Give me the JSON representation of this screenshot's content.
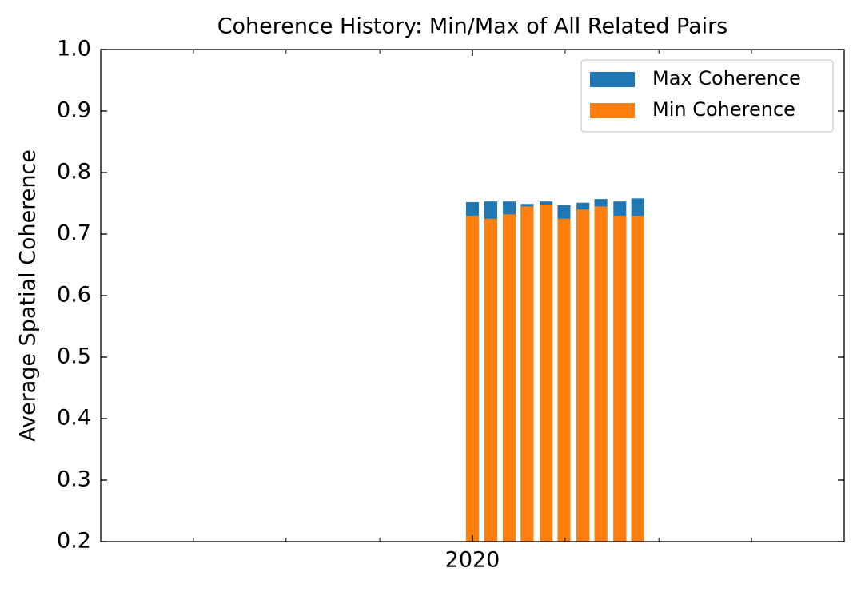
{
  "chart_data": {
    "type": "bar",
    "title": "Coherence History: Min/Max of All Related Pairs",
    "ylabel": "Average Spatial Coherence",
    "x": [
      2020.0,
      2020.0165,
      2020.033,
      2020.049,
      2020.066,
      2020.082,
      2020.099,
      2020.115,
      2020.132,
      2020.148
    ],
    "series": [
      {
        "name": "Max Coherence",
        "color": "#1f77b4",
        "values": [
          0.752,
          0.753,
          0.753,
          0.749,
          0.753,
          0.747,
          0.751,
          0.757,
          0.753,
          0.758
        ]
      },
      {
        "name": "Min Coherence",
        "color": "#ff7f0e",
        "values": [
          0.73,
          0.725,
          0.732,
          0.745,
          0.748,
          0.725,
          0.74,
          0.745,
          0.73,
          0.73
        ]
      }
    ],
    "xlim": [
      2019.667,
      2020.333
    ],
    "xticks": [
      2020
    ],
    "xminorticks": [
      2019.75,
      2019.833,
      2019.917,
      2020.083,
      2020.167,
      2020.25
    ],
    "ylim": [
      0.2,
      1.0
    ],
    "yticks": [
      0.2,
      0.3,
      0.4,
      0.5,
      0.6,
      0.7,
      0.8,
      0.9,
      {
        "value": 1.0,
        "label": "1.0"
      }
    ],
    "legend": "upper right"
  }
}
